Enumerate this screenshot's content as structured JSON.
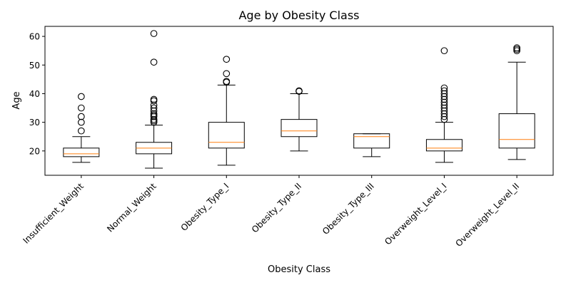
{
  "chart_data": {
    "type": "boxplot",
    "title": "Age by Obesity Class",
    "xlabel": "Obesity Class",
    "ylabel": "Age",
    "ylim": [
      11.5,
      63.5
    ],
    "yticks": [
      20,
      30,
      40,
      50,
      60
    ],
    "grid": false,
    "colors": {
      "box": "#000000",
      "median": "#ff7f0e",
      "background": "#ffffff"
    },
    "categories": [
      "Insufficient_Weight",
      "Normal_Weight",
      "Obesity_Type_I",
      "Obesity_Type_II",
      "Obesity_Type_III",
      "Overweight_Level_I",
      "Overweight_Level_II"
    ],
    "boxes": [
      {
        "category": "Insufficient_Weight",
        "whislo": 16,
        "q1": 18,
        "median": 19,
        "q3": 21,
        "whishi": 25,
        "fliers": [
          27,
          30,
          32,
          35,
          39
        ]
      },
      {
        "category": "Normal_Weight",
        "whislo": 14,
        "q1": 19,
        "median": 21,
        "q3": 23,
        "whishi": 29,
        "fliers": [
          30,
          30.5,
          31,
          32,
          32.5,
          33,
          34,
          35,
          36,
          37.5,
          38,
          51,
          61
        ]
      },
      {
        "category": "Obesity_Type_I",
        "whislo": 15,
        "q1": 21,
        "median": 23,
        "q3": 30,
        "whishi": 43,
        "fliers": [
          44,
          44.3,
          47,
          52
        ]
      },
      {
        "category": "Obesity_Type_II",
        "whislo": 20,
        "q1": 25,
        "median": 27,
        "q3": 31,
        "whishi": 40,
        "fliers": [
          40.8,
          41
        ]
      },
      {
        "category": "Obesity_Type_III",
        "whislo": 18,
        "q1": 21,
        "median": 25,
        "q3": 26,
        "whishi": 26,
        "fliers": []
      },
      {
        "category": "Overweight_Level_I",
        "whislo": 16,
        "q1": 20,
        "median": 21,
        "q3": 24,
        "whishi": 30,
        "fliers": [
          31,
          32,
          33,
          34,
          35,
          36,
          37,
          38,
          39,
          40,
          41,
          42,
          55
        ]
      },
      {
        "category": "Overweight_Level_II",
        "whislo": 17,
        "q1": 21,
        "median": 24,
        "q3": 33,
        "whishi": 51,
        "fliers": [
          55,
          55.5,
          56
        ]
      }
    ]
  }
}
